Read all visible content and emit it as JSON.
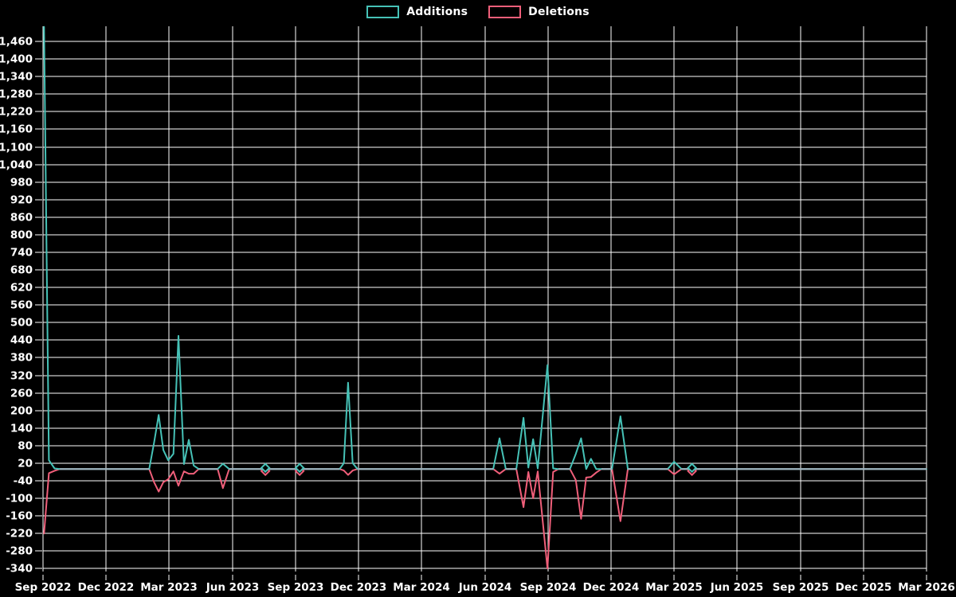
{
  "legend": [
    {
      "label": "Additions",
      "color": "#46c2b7"
    },
    {
      "label": "Deletions",
      "color": "#f05f7a"
    }
  ],
  "colors": {
    "background": "#000000",
    "grid": "#ffffff",
    "additions": "#46c2b7",
    "deletions": "#f05f7a",
    "zero_overlap_line": "#9fb3be",
    "text": "#ffffff"
  },
  "chart_data": {
    "type": "line",
    "title": "",
    "xlabel": "",
    "ylabel": "",
    "grid": true,
    "legend_position": "top-center",
    "x_unit": "months_since_Sep_2022",
    "xlim": [
      0,
      42
    ],
    "ylim": [
      -350,
      1512
    ],
    "y_tick_max": 1460,
    "y_tick_step": 60,
    "y_tick_labels": [
      "1,460",
      "1,400",
      "1,340",
      "1,280",
      "1,220",
      "1,160",
      "1,100",
      "1,040",
      "980",
      "920",
      "860",
      "800",
      "740",
      "680",
      "620",
      "560",
      "500",
      "440",
      "380",
      "320",
      "260",
      "200",
      "140",
      "80",
      "20",
      "-40",
      "-100",
      "-160",
      "-220",
      "-280",
      "-340"
    ],
    "x_tick_labels": [
      "Sep 2022",
      "Dec 2022",
      "Mar 2023",
      "Jun 2023",
      "Sep 2023",
      "Dec 2023",
      "Mar 2024",
      "Jun 2024",
      "Sep 2024",
      "Dec 2024",
      "Mar 2025",
      "Jun 2025",
      "Sep 2025",
      "Dec 2025",
      "Mar 2026"
    ],
    "x": [
      0.05,
      0.28,
      0.55,
      0.8,
      5.05,
      5.28,
      5.5,
      5.72,
      5.95,
      6.2,
      6.44,
      6.7,
      6.93,
      7.16,
      7.4,
      8.3,
      8.55,
      8.85,
      10.57,
      12.2,
      14.1,
      14.3,
      14.5,
      14.72,
      14.95,
      21.4,
      21.7,
      22.0,
      22.5,
      22.84,
      23.07,
      23.3,
      23.52,
      23.98,
      24.25,
      24.5,
      25.05,
      25.33,
      25.58,
      25.82,
      26.05,
      26.3,
      26.55,
      27.05,
      27.45,
      27.8,
      29.7,
      30.0,
      30.35,
      30.85,
      42.0
    ],
    "series": [
      {
        "name": "Additions",
        "color": "#46c2b7",
        "values": [
          1510,
          30,
          2,
          0,
          0,
          90,
          185,
          65,
          30,
          52,
          455,
          17,
          100,
          12,
          0,
          0,
          18,
          0,
          0,
          0,
          0,
          20,
          295,
          20,
          0,
          0,
          105,
          0,
          0,
          175,
          5,
          102,
          2,
          355,
          2,
          0,
          0,
          52,
          105,
          0,
          35,
          0,
          0,
          0,
          180,
          0,
          0,
          25,
          0,
          0,
          0
        ]
      },
      {
        "name": "Deletions",
        "color": "#f05f7a",
        "values": [
          -220,
          -14,
          -6,
          0,
          0,
          -45,
          -77,
          -45,
          -35,
          -8,
          -57,
          -8,
          -16,
          -16,
          0,
          0,
          -65,
          0,
          0,
          0,
          0,
          -5,
          -20,
          -5,
          0,
          0,
          -16,
          0,
          0,
          -130,
          -10,
          -100,
          -8,
          -340,
          -10,
          0,
          0,
          -38,
          -170,
          -29,
          -27,
          -12,
          0,
          0,
          -178,
          0,
          0,
          -18,
          0,
          0,
          0
        ]
      }
    ],
    "isolated_markers_m": [
      10.57,
      12.2,
      30.85
    ]
  }
}
